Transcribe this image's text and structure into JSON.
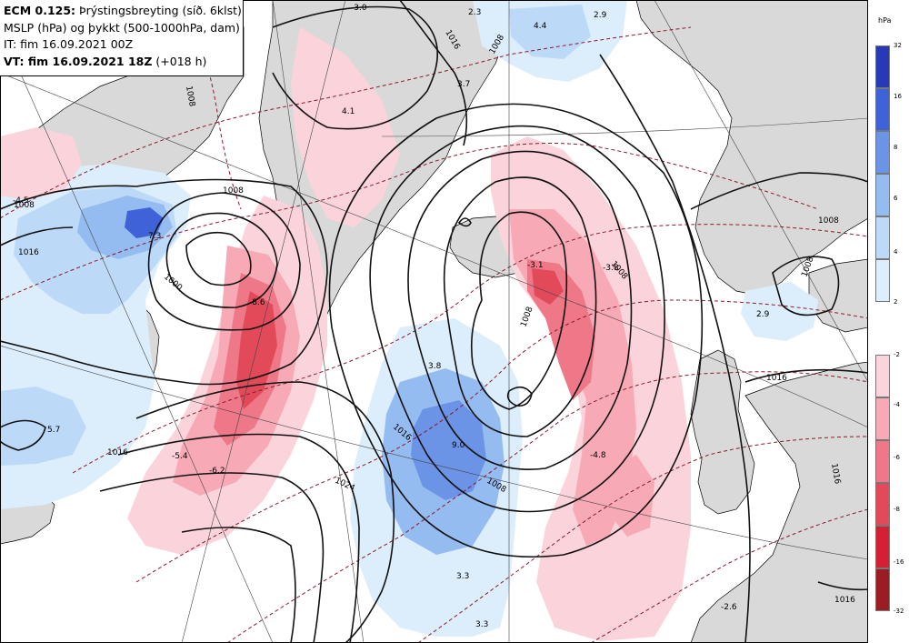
{
  "header": {
    "model": "ECM 0.125:",
    "field": "Þrýstingsbreyting (síð. 6klst)",
    "line2": "MSLP (hPa) og þykkt (500-1000hPa, dam)",
    "line3": "IT: fim 16.09.2021 00Z",
    "line4_bold": "VT: fim 16.09.2021 18Z",
    "line4_rest": "(+018 h)"
  },
  "legend": {
    "unit": "hPa",
    "rise_ticks": [
      "32",
      "16",
      "8",
      "6",
      "4",
      "2"
    ],
    "fall_ticks": [
      "-2",
      "-4",
      "-6",
      "-8",
      "-16",
      "-32"
    ],
    "rise_colors": [
      "#2839b8",
      "#3f62d8",
      "#6b93e6",
      "#95bcf0",
      "#bcdaf8",
      "#dcedfb"
    ],
    "fall_colors": [
      "#fbd3db",
      "#f7a9b6",
      "#ef7888",
      "#e24a5a",
      "#d32133",
      "#9c1c24"
    ]
  },
  "isobar_labels": [
    {
      "text": "1008"
    },
    {
      "text": "1016"
    },
    {
      "text": "1008"
    },
    {
      "text": "1000"
    },
    {
      "text": "1016"
    },
    {
      "text": "1008"
    },
    {
      "text": "1024"
    },
    {
      "text": "1008"
    },
    {
      "text": "1008"
    },
    {
      "text": "1008"
    },
    {
      "text": "1016"
    },
    {
      "text": "1016"
    },
    {
      "text": "1016"
    },
    {
      "text": "1008"
    },
    {
      "text": "1016"
    },
    {
      "text": "1008"
    },
    {
      "text": "1008"
    },
    {
      "text": "1016"
    }
  ],
  "pressure_change_labels": [
    {
      "text": "-3.0"
    },
    {
      "text": "2.3"
    },
    {
      "text": "4.4"
    },
    {
      "text": "2.9"
    },
    {
      "text": "3.7"
    },
    {
      "text": "4.1"
    },
    {
      "text": "-4.5"
    },
    {
      "text": "7.3"
    },
    {
      "text": "-8.6"
    },
    {
      "text": "-3.1"
    },
    {
      "text": "-3.8"
    },
    {
      "text": "3.8"
    },
    {
      "text": "5.7"
    },
    {
      "text": "9.0"
    },
    {
      "text": "-5.4"
    },
    {
      "text": "-6.2"
    },
    {
      "text": "-4.8"
    },
    {
      "text": "2.9"
    },
    {
      "text": "3.3"
    },
    {
      "text": "3.3"
    },
    {
      "text": "-2.6"
    }
  ]
}
